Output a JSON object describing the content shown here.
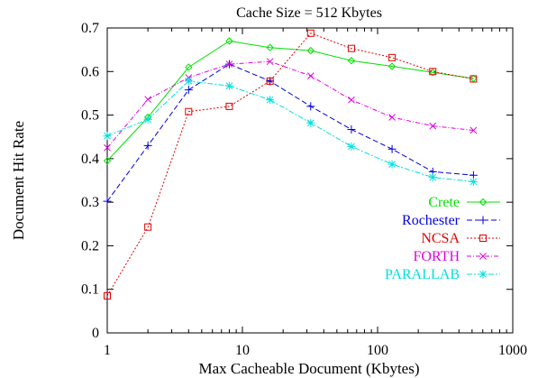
{
  "chart_data": {
    "type": "line",
    "title": "Cache Size = 512 Kbytes",
    "xlabel": "Max Cacheable Document (Kbytes)",
    "ylabel": "Document Hit Rate",
    "xscale": "log",
    "xlim": [
      1,
      1000
    ],
    "ylim": [
      0,
      0.7
    ],
    "xticks": [
      1,
      10,
      100,
      1000
    ],
    "xtick_labels": [
      "1",
      "10",
      "100",
      "1000"
    ],
    "yticks": [
      0,
      0.1,
      0.2,
      0.3,
      0.4,
      0.5,
      0.6,
      0.7
    ],
    "ytick_labels": [
      "0",
      "0.1",
      "0.2",
      "0.3",
      "0.4",
      "0.5",
      "0.6",
      "0.7"
    ],
    "grid": false,
    "legend_position": "lower-right",
    "x": [
      1,
      2,
      4,
      8,
      16,
      32,
      64,
      128,
      256,
      512
    ],
    "series": [
      {
        "name": "Crete",
        "color": "#00e000",
        "dash": "",
        "marker": "diamond",
        "values": [
          0.395,
          0.495,
          0.61,
          0.67,
          0.655,
          0.648,
          0.625,
          0.612,
          0.598,
          0.584
        ]
      },
      {
        "name": "Rochester",
        "color": "#0000e0",
        "dash": "6,3",
        "marker": "plus",
        "values": [
          0.302,
          0.43,
          0.558,
          0.617,
          0.578,
          0.52,
          0.467,
          0.422,
          0.37,
          0.362
        ]
      },
      {
        "name": "NCSA",
        "color": "#e00000",
        "dash": "2,2",
        "marker": "square",
        "values": [
          0.085,
          0.243,
          0.508,
          0.52,
          0.578,
          0.688,
          0.653,
          0.632,
          0.6,
          0.583
        ]
      },
      {
        "name": "FORTH",
        "color": "#e000e0",
        "dash": "5,2,1,2",
        "marker": "cross",
        "values": [
          0.425,
          0.536,
          0.586,
          0.617,
          0.623,
          0.59,
          0.535,
          0.495,
          0.475,
          0.465
        ]
      },
      {
        "name": "PARALLAB",
        "color": "#00e0e0",
        "dash": "6,2,2,2",
        "marker": "star",
        "values": [
          0.452,
          0.49,
          0.578,
          0.567,
          0.535,
          0.482,
          0.428,
          0.387,
          0.357,
          0.347
        ]
      }
    ]
  }
}
